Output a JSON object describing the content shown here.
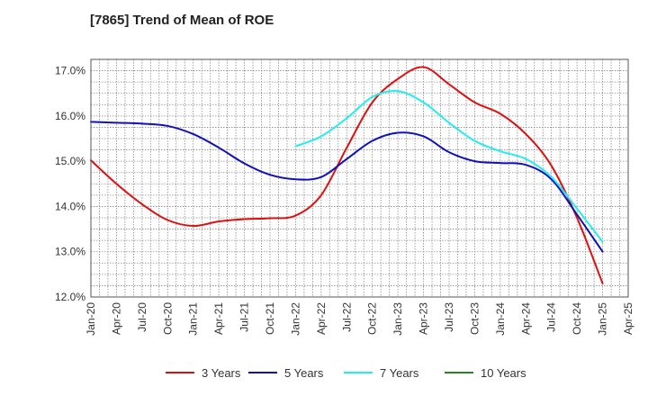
{
  "chart_data": {
    "type": "line",
    "title": "[7865]  Trend of Mean of ROE",
    "xlabel": "",
    "ylabel": "",
    "ylim": [
      12.0,
      17.25
    ],
    "y_ticks": [
      "12.0%",
      "13.0%",
      "14.0%",
      "15.0%",
      "16.0%",
      "17.0%"
    ],
    "x_ticks": [
      "Jan-20",
      "Apr-20",
      "Jul-20",
      "Oct-20",
      "Jan-21",
      "Apr-21",
      "Jul-21",
      "Oct-21",
      "Jan-22",
      "Apr-22",
      "Jul-22",
      "Oct-22",
      "Jan-23",
      "Apr-23",
      "Jul-23",
      "Oct-23",
      "Jan-24",
      "Apr-24",
      "Jul-24",
      "Oct-24",
      "Jan-25",
      "Apr-25"
    ],
    "grid": true,
    "legend_position": "bottom",
    "series": [
      {
        "name": "3 Years",
        "color": "#dd1111",
        "points": [
          [
            "Jan-20",
            15.02
          ],
          [
            "Apr-20",
            14.5
          ],
          [
            "Jul-20",
            14.05
          ],
          [
            "Oct-20",
            13.7
          ],
          [
            "Jan-21",
            13.57
          ],
          [
            "Apr-21",
            13.67
          ],
          [
            "Jul-21",
            13.72
          ],
          [
            "Oct-21",
            13.74
          ],
          [
            "Jan-22",
            13.8
          ],
          [
            "Apr-22",
            14.25
          ],
          [
            "Jul-22",
            15.3
          ],
          [
            "Oct-22",
            16.3
          ],
          [
            "Jan-23",
            16.82
          ],
          [
            "Apr-23",
            17.08
          ],
          [
            "Jul-23",
            16.7
          ],
          [
            "Oct-23",
            16.3
          ],
          [
            "Jan-24",
            16.05
          ],
          [
            "Apr-24",
            15.6
          ],
          [
            "Jul-24",
            14.9
          ],
          [
            "Oct-24",
            13.75
          ],
          [
            "Jan-25",
            12.3
          ]
        ]
      },
      {
        "name": "5 Years",
        "color": "#1111bb",
        "points": [
          [
            "Jan-20",
            15.87
          ],
          [
            "Apr-20",
            15.85
          ],
          [
            "Jul-20",
            15.83
          ],
          [
            "Oct-20",
            15.78
          ],
          [
            "Jan-21",
            15.6
          ],
          [
            "Apr-21",
            15.3
          ],
          [
            "Jul-21",
            14.95
          ],
          [
            "Oct-21",
            14.7
          ],
          [
            "Jan-22",
            14.6
          ],
          [
            "Apr-22",
            14.65
          ],
          [
            "Jul-22",
            15.05
          ],
          [
            "Oct-22",
            15.45
          ],
          [
            "Jan-23",
            15.63
          ],
          [
            "Apr-23",
            15.55
          ],
          [
            "Jul-23",
            15.2
          ],
          [
            "Oct-23",
            15.0
          ],
          [
            "Jan-24",
            14.96
          ],
          [
            "Apr-24",
            14.92
          ],
          [
            "Jul-24",
            14.6
          ],
          [
            "Oct-24",
            13.82
          ],
          [
            "Jan-25",
            13.0
          ]
        ]
      },
      {
        "name": "7 Years",
        "color": "#22eeee",
        "points": [
          [
            "Jan-22",
            15.33
          ],
          [
            "Apr-22",
            15.55
          ],
          [
            "Jul-22",
            15.95
          ],
          [
            "Oct-22",
            16.42
          ],
          [
            "Jan-23",
            16.55
          ],
          [
            "Apr-23",
            16.3
          ],
          [
            "Jul-23",
            15.85
          ],
          [
            "Oct-23",
            15.45
          ],
          [
            "Jan-24",
            15.22
          ],
          [
            "Apr-24",
            15.05
          ],
          [
            "Jul-24",
            14.65
          ],
          [
            "Oct-24",
            13.95
          ],
          [
            "Jan-25",
            13.22
          ]
        ]
      },
      {
        "name": "10 Years",
        "color": "#228822",
        "points": []
      }
    ]
  }
}
